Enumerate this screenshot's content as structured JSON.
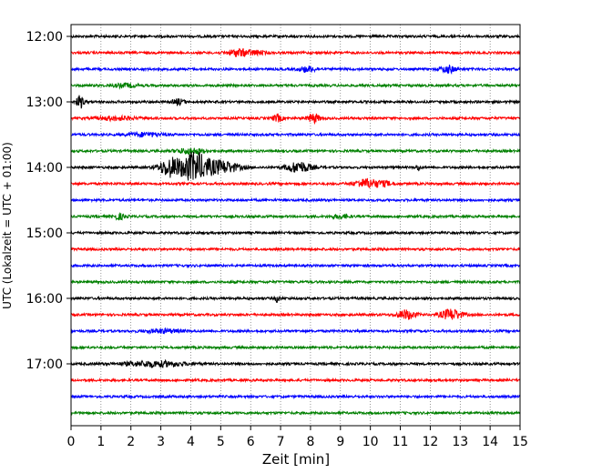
{
  "chart_data": {
    "type": "line",
    "title": "",
    "xlabel": "Zeit  [min]",
    "ylabel": "UTC (Lokalzeit = UTC + 01:00)",
    "x_ticks": [
      "0",
      "1",
      "2",
      "3",
      "4",
      "5",
      "6",
      "7",
      "8",
      "9",
      "10",
      "11",
      "12",
      "13",
      "14",
      "15"
    ],
    "xlim": [
      0,
      15
    ],
    "y_tick_labels": [
      "12:00",
      "13:00",
      "14:00",
      "15:00",
      "16:00",
      "17:00"
    ],
    "y_tick_rows": [
      0,
      4,
      8,
      12,
      16,
      20
    ],
    "trace_start_times": [
      "12:00",
      "12:15",
      "12:30",
      "12:45",
      "13:00",
      "13:15",
      "13:30",
      "13:45",
      "14:00",
      "14:15",
      "14:30",
      "14:45",
      "15:00",
      "15:15",
      "15:30",
      "15:45",
      "16:00",
      "16:15",
      "16:30",
      "16:45",
      "17:00",
      "17:15",
      "17:30",
      "17:45"
    ],
    "trace_colors": [
      "#000000",
      "#ff0000",
      "#0000ff",
      "#008000"
    ],
    "grid": "vertical dotted at each minute",
    "events": [
      {
        "row": 1,
        "minute": 5.6,
        "amplitude": 4,
        "width": 0.35
      },
      {
        "row": 1,
        "minute": 6.2,
        "amplitude": 2,
        "width": 0.3
      },
      {
        "row": 3,
        "minute": 1.8,
        "amplitude": 2,
        "width": 0.4
      },
      {
        "row": 2,
        "minute": 7.9,
        "amplitude": 3,
        "width": 0.3
      },
      {
        "row": 2,
        "minute": 12.6,
        "amplitude": 4,
        "width": 0.25
      },
      {
        "row": 4,
        "minute": 0.3,
        "amplitude": 7,
        "width": 0.12
      },
      {
        "row": 4,
        "minute": 3.6,
        "amplitude": 3,
        "width": 0.2
      },
      {
        "row": 5,
        "minute": 6.9,
        "amplitude": 4,
        "width": 0.15
      },
      {
        "row": 5,
        "minute": 8.1,
        "amplitude": 5,
        "width": 0.2
      },
      {
        "row": 5,
        "minute": 1.5,
        "amplitude": 2,
        "width": 0.6
      },
      {
        "row": 6,
        "minute": 2.5,
        "amplitude": 2,
        "width": 0.6
      },
      {
        "row": 7,
        "minute": 4.0,
        "amplitude": 3,
        "width": 0.5
      },
      {
        "row": 8,
        "minute": 3.3,
        "amplitude": 10,
        "width": 0.35
      },
      {
        "row": 8,
        "minute": 4.1,
        "amplitude": 16,
        "width": 0.45
      },
      {
        "row": 8,
        "minute": 5.0,
        "amplitude": 7,
        "width": 0.6
      },
      {
        "row": 8,
        "minute": 7.6,
        "amplitude": 6,
        "width": 0.4
      },
      {
        "row": 8,
        "minute": 11.6,
        "amplitude": 3,
        "width": 0.08
      },
      {
        "row": 9,
        "minute": 9.9,
        "amplitude": 5,
        "width": 0.4
      },
      {
        "row": 9,
        "minute": 10.5,
        "amplitude": 2,
        "width": 0.3
      },
      {
        "row": 11,
        "minute": 1.6,
        "amplitude": 3,
        "width": 0.2
      },
      {
        "row": 11,
        "minute": 9.0,
        "amplitude": 2,
        "width": 0.3
      },
      {
        "row": 16,
        "minute": 6.9,
        "amplitude": 4,
        "width": 0.08
      },
      {
        "row": 17,
        "minute": 11.2,
        "amplitude": 5,
        "width": 0.3
      },
      {
        "row": 17,
        "minute": 12.7,
        "amplitude": 6,
        "width": 0.35
      },
      {
        "row": 18,
        "minute": 3.1,
        "amplitude": 2,
        "width": 0.6
      },
      {
        "row": 20,
        "minute": 2.8,
        "amplitude": 3,
        "width": 1.0
      }
    ]
  }
}
